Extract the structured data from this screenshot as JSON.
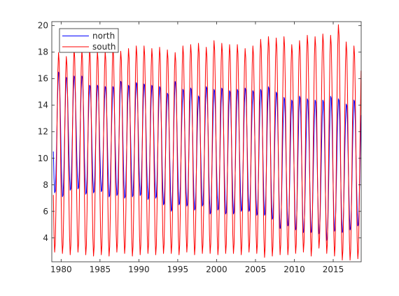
{
  "chart_data": {
    "type": "line",
    "title": "",
    "xlabel": "",
    "ylabel": "",
    "xlim": [
      1978.8,
      2018.6
    ],
    "ylim": [
      2.2,
      20.3
    ],
    "xticks": [
      1980,
      1985,
      1990,
      1995,
      2000,
      2005,
      2010,
      2015
    ],
    "yticks": [
      4,
      6,
      8,
      10,
      12,
      14,
      16,
      18,
      20
    ],
    "grid": false,
    "legend_location": "top-left",
    "sampling": "monthly climatology-like seasonal cycle, one peak per year",
    "series": [
      {
        "name": "north",
        "color": "#0000ff",
        "phase": "min near February-March, max near September",
        "annual_max": [
          16.6,
          16.2,
          16.3,
          16.3,
          15.6,
          15.6,
          15.5,
          15.5,
          15.9,
          15.6,
          15.8,
          15.7,
          15.6,
          15.5,
          15.0,
          15.9,
          15.3,
          15.4,
          14.8,
          15.5,
          15.3,
          15.4,
          15.2,
          15.3,
          15.4,
          15.2,
          15.3,
          15.5,
          15.1,
          14.7,
          14.5,
          14.8,
          14.6,
          14.5,
          14.5,
          14.8,
          14.6,
          14.2,
          14.5,
          14.5
        ],
        "annual_min": [
          7.3,
          7.0,
          7.5,
          7.6,
          7.2,
          7.3,
          7.4,
          7.0,
          7.1,
          6.9,
          7.0,
          7.1,
          6.8,
          6.9,
          6.4,
          5.9,
          6.4,
          6.3,
          6.0,
          6.3,
          5.7,
          6.0,
          5.7,
          5.7,
          5.9,
          5.9,
          5.6,
          5.6,
          5.3,
          4.6,
          4.8,
          4.5,
          4.3,
          4.3,
          4.2,
          3.7,
          4.4,
          4.3,
          4.5,
          4.8
        ]
      },
      {
        "name": "south",
        "color": "#ff0000",
        "phase": "min near February, max near September",
        "annual_max": [
          18.0,
          17.7,
          18.3,
          18.2,
          18.3,
          18.1,
          18.1,
          18.4,
          18.1,
          18.3,
          18.5,
          18.5,
          18.3,
          18.4,
          18.2,
          18.0,
          18.5,
          18.6,
          18.7,
          18.4,
          18.9,
          18.7,
          18.6,
          18.6,
          18.3,
          18.5,
          19.0,
          19.2,
          19.1,
          19.2,
          18.6,
          18.9,
          19.3,
          19.2,
          19.4,
          19.3,
          20.1,
          18.8,
          18.5,
          18.0
        ],
        "annual_min": [
          2.9,
          2.8,
          2.7,
          2.9,
          2.7,
          2.6,
          2.7,
          2.6,
          2.9,
          2.8,
          2.6,
          2.7,
          2.8,
          2.7,
          2.8,
          2.8,
          2.7,
          2.9,
          2.7,
          2.8,
          2.8,
          2.7,
          2.8,
          2.8,
          2.7,
          2.9,
          2.8,
          2.5,
          2.6,
          2.7,
          2.7,
          2.8,
          2.9,
          2.6,
          3.2,
          2.8,
          2.6,
          2.3,
          2.3,
          2.4
        ]
      }
    ]
  }
}
